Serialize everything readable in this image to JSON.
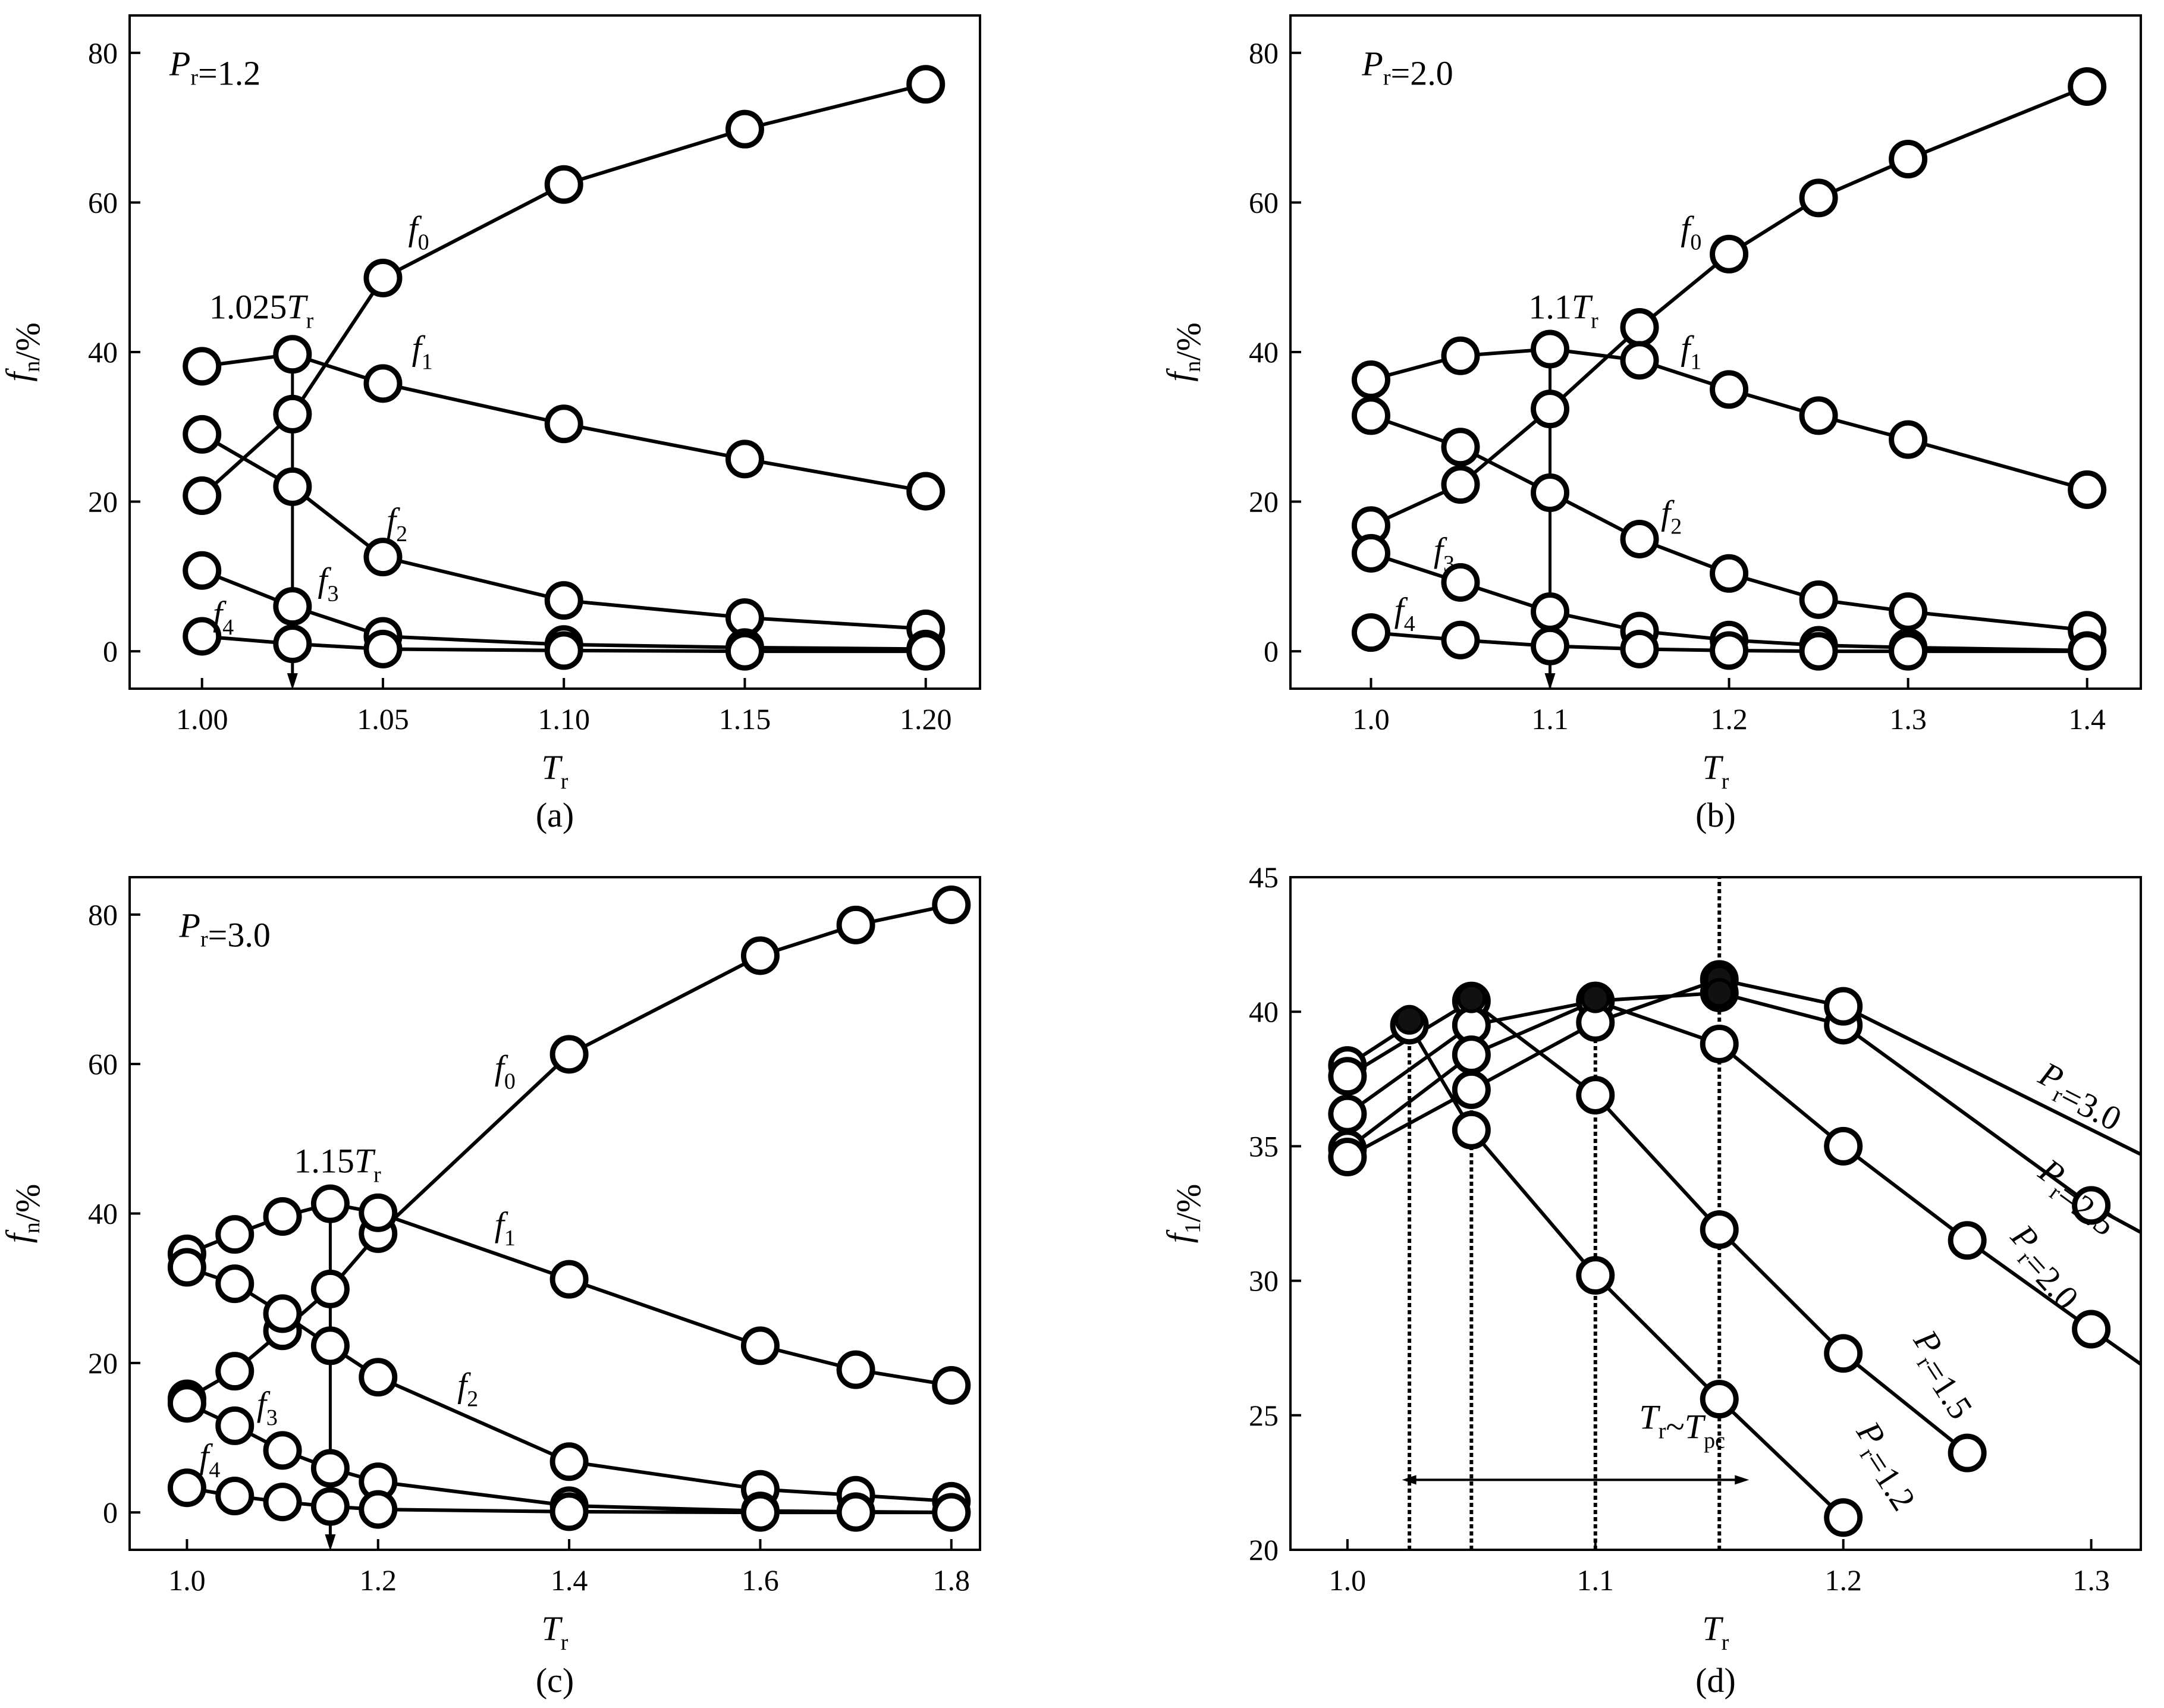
{
  "chart_data": [
    {
      "type": "line",
      "caption": "(a)",
      "xlabel": "T|r",
      "ylabel": "f|n|/%",
      "xlim": [
        0.98,
        1.215
      ],
      "ylim": [
        -5,
        85
      ],
      "xticks": [
        1.0,
        1.05,
        1.1,
        1.15,
        1.2
      ],
      "xtick_labels": [
        "1.00",
        "1.05",
        "1.10",
        "1.15",
        "1.20"
      ],
      "yticks": [
        0,
        20,
        40,
        60,
        80
      ],
      "ytick_labels": [
        "0",
        "20",
        "40",
        "60",
        "80"
      ],
      "series": [
        {
          "name": "f|0",
          "x": [
            1.0,
            1.025,
            1.05,
            1.1,
            1.15,
            1.2
          ],
          "y": [
            20.8,
            31.7,
            49.9,
            62.4,
            69.8,
            75.8
          ]
        },
        {
          "name": "f|1",
          "x": [
            1.0,
            1.025,
            1.05,
            1.1,
            1.15,
            1.2
          ],
          "y": [
            38.1,
            39.7,
            35.8,
            30.4,
            25.7,
            21.4
          ]
        },
        {
          "name": "f|2",
          "x": [
            1.0,
            1.025,
            1.05,
            1.1,
            1.15,
            1.2
          ],
          "y": [
            29.0,
            22.0,
            12.6,
            6.8,
            4.5,
            3.0
          ]
        },
        {
          "name": "f|3",
          "x": [
            1.0,
            1.025,
            1.05,
            1.1,
            1.15,
            1.2
          ],
          "y": [
            10.8,
            6.0,
            2.0,
            0.9,
            0.5,
            0.3
          ]
        },
        {
          "name": "f|4",
          "x": [
            1.0,
            1.025,
            1.05,
            1.1,
            1.15,
            1.2
          ],
          "y": [
            2.0,
            1.0,
            0.3,
            0.1,
            0.0,
            0.0
          ]
        }
      ],
      "series_labels": [
        {
          "text": "f|0",
          "x": 1.057,
          "y": 55
        },
        {
          "text": "f|1",
          "x": 1.058,
          "y": 39
        },
        {
          "text": "f|2",
          "x": 1.051,
          "y": 16
        },
        {
          "text": "f|3",
          "x": 1.032,
          "y": 8
        },
        {
          "text": "f|4",
          "x": 1.003,
          "y": 3.5
        }
      ],
      "annotations": [
        {
          "kind": "text",
          "text": "P|r|=1.2",
          "x": 0.991,
          "y": 77
        },
        {
          "kind": "text",
          "text": "1.025T|r",
          "x": 1.002,
          "y": 44.5
        },
        {
          "kind": "arrow",
          "x": 1.025,
          "y_from": 39.7,
          "y_to": -5
        }
      ]
    },
    {
      "type": "line",
      "caption": "(b)",
      "xlabel": "T|r",
      "ylabel": "f|n|/%",
      "xlim": [
        0.955,
        1.43
      ],
      "ylim": [
        -5,
        85
      ],
      "xticks": [
        1.0,
        1.1,
        1.2,
        1.3,
        1.4
      ],
      "xtick_labels": [
        "1.0",
        "1.1",
        "1.2",
        "1.3",
        "1.4"
      ],
      "yticks": [
        0,
        20,
        40,
        60,
        80
      ],
      "ytick_labels": [
        "0",
        "20",
        "40",
        "60",
        "80"
      ],
      "series": [
        {
          "name": "f|0",
          "x": [
            1.0,
            1.05,
            1.1,
            1.15,
            1.2,
            1.25,
            1.3,
            1.4
          ],
          "y": [
            16.8,
            22.3,
            32.4,
            43.3,
            53.1,
            60.6,
            65.8,
            75.5
          ]
        },
        {
          "name": "f|1",
          "x": [
            1.0,
            1.05,
            1.1,
            1.15,
            1.2,
            1.25,
            1.3,
            1.4
          ],
          "y": [
            36.3,
            39.5,
            40.4,
            38.9,
            35.0,
            31.5,
            28.3,
            21.6
          ]
        },
        {
          "name": "f|2",
          "x": [
            1.0,
            1.05,
            1.1,
            1.15,
            1.2,
            1.25,
            1.3,
            1.4
          ],
          "y": [
            31.5,
            27.3,
            21.2,
            15.0,
            10.4,
            6.9,
            5.3,
            2.8
          ]
        },
        {
          "name": "f|3",
          "x": [
            1.0,
            1.05,
            1.1,
            1.15,
            1.2,
            1.25,
            1.3,
            1.4
          ],
          "y": [
            13.1,
            9.2,
            5.3,
            2.7,
            1.5,
            0.8,
            0.5,
            0.1
          ]
        },
        {
          "name": "f|4",
          "x": [
            1.0,
            1.05,
            1.1,
            1.15,
            1.2,
            1.25,
            1.3,
            1.4
          ],
          "y": [
            2.5,
            1.5,
            0.7,
            0.3,
            0.1,
            0.0,
            0.0,
            0.0
          ]
        }
      ],
      "series_labels": [
        {
          "text": "f|0",
          "x": 1.173,
          "y": 55
        },
        {
          "text": "f|1",
          "x": 1.173,
          "y": 39
        },
        {
          "text": "f|2",
          "x": 1.162,
          "y": 17
        },
        {
          "text": "f|3",
          "x": 1.035,
          "y": 12
        },
        {
          "text": "f|4",
          "x": 1.013,
          "y": 4
        }
      ],
      "annotations": [
        {
          "kind": "text",
          "text": "P|r|=2.0",
          "x": 0.995,
          "y": 77
        },
        {
          "kind": "text",
          "text": "1.1T|r",
          "x": 1.088,
          "y": 44.5
        },
        {
          "kind": "arrow",
          "x": 1.1,
          "y_from": 40.4,
          "y_to": -5
        }
      ]
    },
    {
      "type": "line",
      "caption": "(c)",
      "xlabel": "T|r",
      "ylabel": "f|n|/%",
      "xlim": [
        0.94,
        1.83
      ],
      "ylim": [
        -5,
        85
      ],
      "xticks": [
        1.0,
        1.2,
        1.4,
        1.6,
        1.8
      ],
      "xtick_labels": [
        "1.0",
        "1.2",
        "1.4",
        "1.6",
        "1.8"
      ],
      "yticks": [
        0,
        20,
        40,
        60,
        80
      ],
      "ytick_labels": [
        "0",
        "20",
        "40",
        "60",
        "80"
      ],
      "series": [
        {
          "name": "f|0",
          "x": [
            1.0,
            1.05,
            1.1,
            1.15,
            1.2,
            1.4,
            1.6,
            1.7,
            1.8
          ],
          "y": [
            15.2,
            18.9,
            24.3,
            29.9,
            37.3,
            61.3,
            74.5,
            78.6,
            81.3
          ]
        },
        {
          "name": "f|1",
          "x": [
            1.0,
            1.05,
            1.1,
            1.15,
            1.2,
            1.4,
            1.6,
            1.7,
            1.8
          ],
          "y": [
            34.6,
            37.2,
            39.6,
            41.3,
            40.1,
            31.2,
            22.3,
            19.1,
            17.0
          ]
        },
        {
          "name": "f|2",
          "x": [
            1.0,
            1.05,
            1.1,
            1.15,
            1.2,
            1.4,
            1.6,
            1.7,
            1.8
          ],
          "y": [
            32.8,
            30.6,
            26.6,
            22.3,
            18.1,
            6.8,
            3.1,
            2.3,
            1.5
          ]
        },
        {
          "name": "f|3",
          "x": [
            1.0,
            1.05,
            1.1,
            1.15,
            1.2,
            1.4,
            1.6,
            1.7,
            1.8
          ],
          "y": [
            14.6,
            11.6,
            8.3,
            5.9,
            4.1,
            0.9,
            0.2,
            0.1,
            0.0
          ]
        },
        {
          "name": "f|4",
          "x": [
            1.0,
            1.05,
            1.1,
            1.15,
            1.2,
            1.4,
            1.6,
            1.7,
            1.8
          ],
          "y": [
            3.3,
            2.2,
            1.4,
            0.8,
            0.4,
            0.1,
            0.0,
            0.0,
            0.0
          ]
        }
      ],
      "series_labels": [
        {
          "text": "f|0",
          "x": 1.322,
          "y": 58
        },
        {
          "text": "f|1",
          "x": 1.322,
          "y": 37
        },
        {
          "text": "f|2",
          "x": 1.283,
          "y": 15.5
        },
        {
          "text": "f|3",
          "x": 1.073,
          "y": 13
        },
        {
          "text": "f|4",
          "x": 1.013,
          "y": 6
        }
      ],
      "annotations": [
        {
          "kind": "text",
          "text": "P|r|=3.0",
          "x": 0.992,
          "y": 77
        },
        {
          "kind": "text",
          "text": "1.15T|r",
          "x": 1.112,
          "y": 45.5
        },
        {
          "kind": "arrow",
          "x": 1.15,
          "y_from": 41.3,
          "y_to": -5
        }
      ]
    },
    {
      "type": "line",
      "caption": "(d)",
      "xlabel": "T|r",
      "ylabel": "f|1|/%",
      "xlim": [
        0.977,
        1.32
      ],
      "ylim": [
        20,
        45
      ],
      "xticks": [
        1.0,
        1.1,
        1.2,
        1.3
      ],
      "xtick_labels": [
        "1.0",
        "1.1",
        "1.2",
        "1.3"
      ],
      "yticks": [
        20,
        25,
        30,
        35,
        40,
        45
      ],
      "ytick_labels": [
        "20",
        "25",
        "30",
        "35",
        "40",
        "45"
      ],
      "series": [
        {
          "name": "P|r|=1.2",
          "x": [
            1.0,
            1.025,
            1.05,
            1.1,
            1.15,
            1.2
          ],
          "y": [
            38.0,
            39.5,
            35.6,
            30.2,
            25.6,
            21.2
          ],
          "label_angle": 57
        },
        {
          "name": "P|r|=1.5",
          "x": [
            1.0,
            1.05,
            1.1,
            1.15,
            1.2,
            1.25
          ],
          "y": [
            37.6,
            40.4,
            36.9,
            31.9,
            27.3,
            23.6
          ],
          "label_angle": 57
        },
        {
          "name": "P|r|=2.0",
          "x": [
            1.0,
            1.05,
            1.1,
            1.15,
            1.2,
            1.25,
            1.3,
            1.32
          ],
          "y": [
            36.2,
            39.5,
            40.4,
            38.8,
            35.0,
            31.5,
            28.2,
            26.9
          ],
          "label_angle": 48
        },
        {
          "name": "P|r|=2.5",
          "x": [
            1.0,
            1.05,
            1.1,
            1.15,
            1.2,
            1.3,
            1.32
          ],
          "y": [
            34.9,
            38.4,
            40.4,
            40.7,
            39.5,
            32.8,
            31.8
          ],
          "label_angle": 36
        },
        {
          "name": "P|r|=3.0",
          "x": [
            1.0,
            1.05,
            1.1,
            1.15,
            1.2,
            1.32
          ],
          "y": [
            34.6,
            37.1,
            39.6,
            41.2,
            40.2,
            34.7
          ],
          "label_angle": 27
        }
      ],
      "filled_markers": [
        {
          "x": 1.025,
          "y": 39.7
        },
        {
          "x": 1.05,
          "y": 40.5
        },
        {
          "x": 1.1,
          "y": 40.5
        },
        {
          "x": 1.15,
          "y": 41.2
        },
        {
          "x": 1.15,
          "y": 40.7
        }
      ],
      "series_label_positions": [
        {
          "x": 1.205,
          "y": 24.4
        },
        {
          "x": 1.228,
          "y": 27.8
        },
        {
          "x": 1.267,
          "y": 31.6
        },
        {
          "x": 1.278,
          "y": 33.9
        },
        {
          "x": 1.278,
          "y": 37.4
        }
      ],
      "annotations": [
        {
          "kind": "text",
          "text": "T|r|~T|pc",
          "x": 1.135,
          "y": 24.5
        },
        {
          "kind": "double-arrow",
          "x_from": 1.022,
          "x_to": 1.162,
          "y": 22.6
        },
        {
          "kind": "dotted-vlines",
          "x": [
            1.025,
            1.05,
            1.1,
            1.15
          ],
          "y_top": [
            39.7,
            40.5,
            40.5,
            45
          ]
        }
      ]
    }
  ]
}
